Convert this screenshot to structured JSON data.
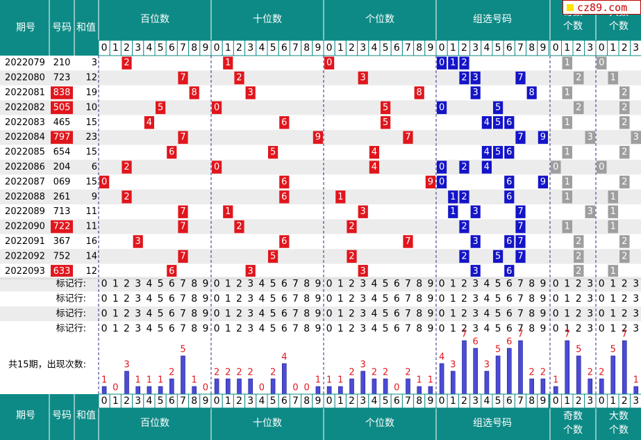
{
  "logo": {
    "text": "cz89.com"
  },
  "colors": {
    "header_bg": "#0e8a86",
    "pos_ball": "#e0161d",
    "combo_ball": "#1414c8",
    "gray_ball": "#9e9e9e",
    "bar_fill": "#4b4bd6",
    "count_text": "#e0161d",
    "row_alt": "#ececec",
    "dashed_line": "#2a2a8a"
  },
  "header": {
    "period": "期号",
    "number": "号码",
    "sum": "和值",
    "groups": [
      "百位数",
      "十位数",
      "个位数",
      "组选号码",
      "奇数个数",
      "大数个数"
    ],
    "digits10": [
      "0",
      "1",
      "2",
      "3",
      "4",
      "5",
      "6",
      "7",
      "8",
      "9"
    ],
    "digits4": [
      "0",
      "1",
      "2",
      "3"
    ]
  },
  "chart_data": {
    "type": "table",
    "rows": [
      {
        "period": "2022079",
        "number": "210",
        "sum": "3",
        "highlight": false,
        "hundreds": 2,
        "tens": 1,
        "units": 0,
        "combo": [
          0,
          1,
          2
        ],
        "odd": 1,
        "big": 0
      },
      {
        "period": "2022080",
        "number": "723",
        "sum": "12",
        "highlight": false,
        "hundreds": 7,
        "tens": 2,
        "units": 3,
        "combo": [
          2,
          3,
          7
        ],
        "odd": 2,
        "big": 1
      },
      {
        "period": "2022081",
        "number": "838",
        "sum": "19",
        "highlight": true,
        "hundreds": 8,
        "tens": 3,
        "units": 8,
        "combo": [
          3,
          8
        ],
        "odd": 1,
        "big": 2
      },
      {
        "period": "2022082",
        "number": "505",
        "sum": "10",
        "highlight": true,
        "hundreds": 5,
        "tens": 0,
        "units": 5,
        "combo": [
          0,
          5
        ],
        "odd": 2,
        "big": 2
      },
      {
        "period": "2022083",
        "number": "465",
        "sum": "15",
        "highlight": false,
        "hundreds": 4,
        "tens": 6,
        "units": 5,
        "combo": [
          4,
          5,
          6
        ],
        "odd": 1,
        "big": 2
      },
      {
        "period": "2022084",
        "number": "797",
        "sum": "23",
        "highlight": true,
        "hundreds": 7,
        "tens": 9,
        "units": 7,
        "combo": [
          7,
          9
        ],
        "odd": 3,
        "big": 3
      },
      {
        "period": "2022085",
        "number": "654",
        "sum": "15",
        "highlight": false,
        "hundreds": 6,
        "tens": 5,
        "units": 4,
        "combo": [
          4,
          5,
          6
        ],
        "odd": 1,
        "big": 2
      },
      {
        "period": "2022086",
        "number": "204",
        "sum": "6",
        "highlight": false,
        "hundreds": 2,
        "tens": 0,
        "units": 4,
        "combo": [
          0,
          2,
          4
        ],
        "odd": 0,
        "big": 0
      },
      {
        "period": "2022087",
        "number": "069",
        "sum": "15",
        "highlight": false,
        "hundreds": 0,
        "tens": 6,
        "units": 9,
        "combo": [
          0,
          6,
          9
        ],
        "odd": 1,
        "big": 2
      },
      {
        "period": "2022088",
        "number": "261",
        "sum": "9",
        "highlight": false,
        "hundreds": 2,
        "tens": 6,
        "units": 1,
        "combo": [
          1,
          2,
          6
        ],
        "odd": 1,
        "big": 1
      },
      {
        "period": "2022089",
        "number": "713",
        "sum": "11",
        "highlight": false,
        "hundreds": 7,
        "tens": 1,
        "units": 3,
        "combo": [
          1,
          3,
          7
        ],
        "odd": 3,
        "big": 1
      },
      {
        "period": "2022090",
        "number": "722",
        "sum": "11",
        "highlight": true,
        "hundreds": 7,
        "tens": 2,
        "units": 2,
        "combo": [
          2,
          7
        ],
        "odd": 1,
        "big": 1
      },
      {
        "period": "2022091",
        "number": "367",
        "sum": "16",
        "highlight": false,
        "hundreds": 3,
        "tens": 6,
        "units": 7,
        "combo": [
          3,
          6,
          7
        ],
        "odd": 2,
        "big": 2
      },
      {
        "period": "2022092",
        "number": "752",
        "sum": "14",
        "highlight": false,
        "hundreds": 7,
        "tens": 5,
        "units": 2,
        "combo": [
          2,
          5,
          7
        ],
        "odd": 2,
        "big": 2
      },
      {
        "period": "2022093",
        "number": "633",
        "sum": "12",
        "highlight": true,
        "hundreds": 6,
        "tens": 3,
        "units": 3,
        "combo": [
          3,
          6
        ],
        "odd": 2,
        "big": 1
      }
    ],
    "marker_rows": [
      "标记行:",
      "标记行:",
      "标记行:",
      "标记行:"
    ],
    "frequency_label": "共15期，出现次数:",
    "frequency": {
      "hundreds": [
        1,
        0,
        3,
        1,
        1,
        1,
        2,
        5,
        1,
        0
      ],
      "tens": [
        2,
        2,
        2,
        2,
        0,
        2,
        4,
        0,
        0,
        1
      ],
      "units": [
        1,
        1,
        2,
        3,
        2,
        2,
        0,
        2,
        1,
        1
      ],
      "combo": [
        4,
        3,
        7,
        6,
        3,
        5,
        6,
        7,
        2,
        2
      ],
      "odd": [
        1,
        7,
        5,
        2
      ],
      "big": [
        2,
        5,
        7,
        1
      ]
    }
  }
}
